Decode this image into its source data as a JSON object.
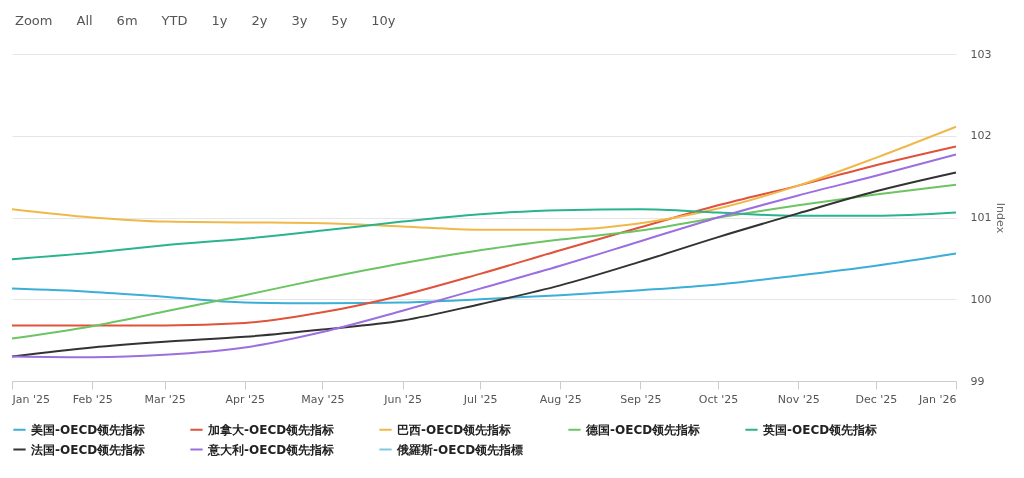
{
  "chart_data": {
    "type": "line",
    "ylabel": "Index",
    "x": [
      "2025-01",
      "2025-02",
      "2025-03",
      "2025-04",
      "2025-05",
      "2025-06",
      "2025-07",
      "2025-08",
      "2025-09",
      "2025-10",
      "2025-11",
      "2025-12",
      "2026-01"
    ],
    "xlim": [
      "2025-01",
      "2026-01"
    ],
    "xticks": [
      {
        "value": "2025-01",
        "label": "Jan '25"
      },
      {
        "value": "2025-02",
        "label": "Feb '25"
      },
      {
        "value": "2025-03",
        "label": "Mar '25"
      },
      {
        "value": "2025-04",
        "label": "Apr '25"
      },
      {
        "value": "2025-05",
        "label": "May '25"
      },
      {
        "value": "2025-06",
        "label": "Jun '25"
      },
      {
        "value": "2025-07",
        "label": "Jul '25"
      },
      {
        "value": "2025-08",
        "label": "Aug '25"
      },
      {
        "value": "2025-09",
        "label": "Sep '25"
      },
      {
        "value": "2025-10",
        "label": "Oct '25"
      },
      {
        "value": "2025-11",
        "label": "Nov '25"
      },
      {
        "value": "2025-12",
        "label": "Dec '25"
      },
      {
        "value": "2026-01",
        "label": "Jan '26"
      }
    ],
    "ylim": [
      99,
      103
    ],
    "yticks": [
      99,
      100,
      101,
      102,
      103
    ],
    "grid": "y",
    "legend": "bottom",
    "marker": "none",
    "line_style": "solid",
    "annotations": [
      "Zoom",
      "All",
      "6m",
      "YTD",
      "1y",
      "2y",
      "3y",
      "5y",
      "10y"
    ],
    "series": [
      {
        "name": "美国-OECD领先指标",
        "color": "#3bafd6",
        "values": [
          100.13,
          100.09,
          100.03,
          99.96,
          99.95,
          99.96,
          100.0,
          100.05,
          100.11,
          100.18,
          100.29,
          100.41,
          100.56
        ]
      },
      {
        "name": "加拿大-OECD领先指标",
        "color": "#e0523a",
        "values": [
          99.68,
          99.68,
          99.68,
          99.71,
          99.84,
          100.05,
          100.31,
          100.6,
          100.88,
          101.15,
          101.39,
          101.64,
          101.87
        ]
      },
      {
        "name": "巴西-OECD领先指标",
        "color": "#f0b84a",
        "values": [
          101.1,
          101.0,
          100.95,
          100.94,
          100.93,
          100.89,
          100.85,
          100.85,
          100.93,
          101.11,
          101.39,
          101.73,
          102.11
        ]
      },
      {
        "name": "德国-OECD领先指标",
        "color": "#6cc463",
        "values": [
          99.52,
          99.67,
          99.85,
          100.05,
          100.25,
          100.44,
          100.6,
          100.73,
          100.84,
          101.0,
          101.15,
          101.28,
          101.4
        ]
      },
      {
        "name": "英国-OECD领先指标",
        "color": "#2bb38e",
        "values": [
          100.49,
          100.57,
          100.66,
          100.74,
          100.84,
          100.95,
          101.04,
          101.09,
          101.1,
          101.06,
          101.02,
          101.02,
          101.06
        ]
      },
      {
        "name": "法国-OECD领先指标",
        "color": "#333333",
        "values": [
          99.3,
          99.41,
          99.48,
          99.54,
          99.63,
          99.74,
          99.94,
          100.17,
          100.46,
          100.76,
          101.05,
          101.32,
          101.55
        ]
      },
      {
        "name": "意大利-OECD领先指标",
        "color": "#9b6fe0",
        "values": [
          99.3,
          99.29,
          99.32,
          99.41,
          99.6,
          99.86,
          100.13,
          100.41,
          100.71,
          101.0,
          101.27,
          101.51,
          101.77
        ]
      },
      {
        "name": "俄羅斯-OECD领先指標",
        "color": "#7ecbe0",
        "values": [
          null,
          null,
          null,
          null,
          null,
          null,
          null,
          null,
          null,
          null,
          null,
          null,
          null
        ]
      }
    ]
  }
}
